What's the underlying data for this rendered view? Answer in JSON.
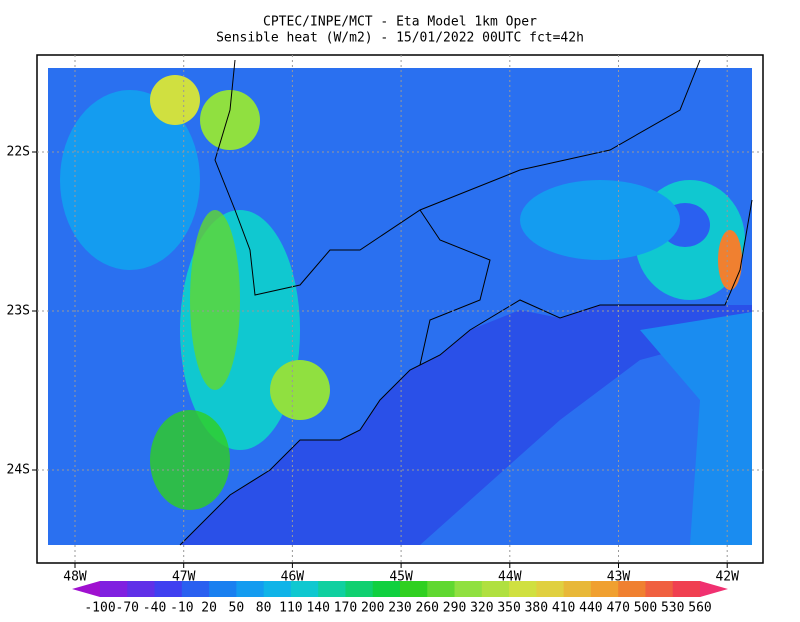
{
  "header": {
    "title": "CPTEC/INPE/MCT -  Eta Model 1km Oper",
    "subtitle": "Sensible heat (W/m2) - 15/01/2022 00UTC fct=42h"
  },
  "map": {
    "lon_labels": [
      "48W",
      "47W",
      "46W",
      "45W",
      "44W",
      "43W",
      "42W"
    ],
    "lat_labels": [
      "22S",
      "23S",
      "24S"
    ]
  },
  "colorbar": {
    "labels": [
      -100,
      -70,
      -40,
      -10,
      20,
      50,
      80,
      110,
      140,
      170,
      200,
      230,
      260,
      290,
      320,
      350,
      380,
      410,
      440,
      470,
      500,
      530,
      560
    ],
    "colors": [
      "#a010d0",
      "#8020e0",
      "#6030e8",
      "#4040f0",
      "#2a60f0",
      "#1a80f0",
      "#149cf0",
      "#10b4e8",
      "#10c8d0",
      "#10d0a0",
      "#10d070",
      "#10d040",
      "#30d020",
      "#60d830",
      "#90e040",
      "#b0e040",
      "#d0e040",
      "#e0d040",
      "#e8b838",
      "#f0a030",
      "#f08030",
      "#f06040",
      "#f04050",
      "#f03070"
    ]
  }
}
